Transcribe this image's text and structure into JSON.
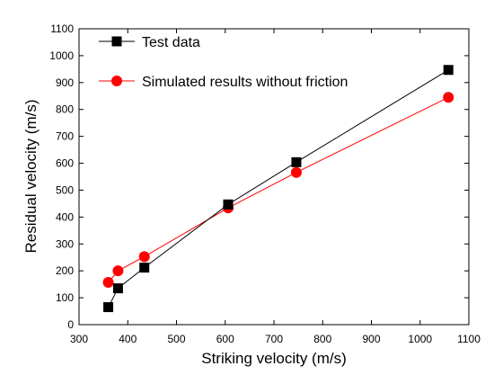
{
  "chart_data": {
    "type": "line",
    "title": "",
    "xlabel": "Striking velocity (m/s)",
    "ylabel": "Residual velocity (m/s)",
    "xlim": [
      300,
      1100
    ],
    "ylim": [
      0,
      1100
    ],
    "xticks": [
      300,
      400,
      500,
      600,
      700,
      800,
      900,
      1000,
      1100
    ],
    "yticks": [
      0,
      100,
      200,
      300,
      400,
      500,
      600,
      700,
      800,
      900,
      1000,
      1100
    ],
    "grid": false,
    "legend_position": "top-left",
    "series": [
      {
        "name": "Test data",
        "color": "#000000",
        "marker": "square",
        "x": [
          360,
          380,
          434,
          606,
          746,
          1058
        ],
        "y": [
          65,
          135,
          212,
          447,
          604,
          947
        ]
      },
      {
        "name": "Simulated results without friction",
        "color": "#ff0000",
        "marker": "circle",
        "x": [
          360,
          380,
          434,
          606,
          746,
          1058
        ],
        "y": [
          157,
          200,
          253,
          434,
          566,
          845
        ]
      }
    ]
  }
}
